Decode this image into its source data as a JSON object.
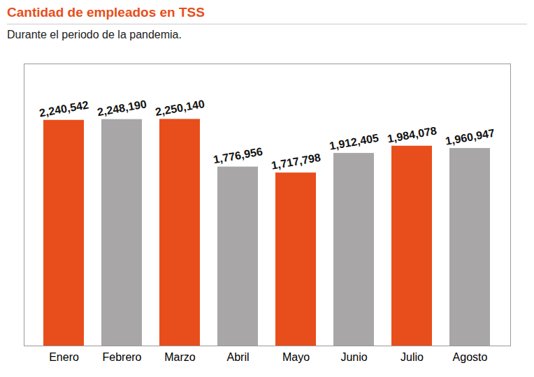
{
  "chart_data": {
    "type": "bar",
    "title": "Cantidad de empleados en TSS",
    "subtitle": "Durante el periodo de la pandemia.",
    "categories": [
      "Enero",
      "Febrero",
      "Marzo",
      "Abril",
      "Mayo",
      "Junio",
      "Julio",
      "Agosto"
    ],
    "values": [
      2240542,
      2248190,
      2250140,
      1776956,
      1717798,
      1912405,
      1984078,
      1960947
    ],
    "value_labels": [
      "2,240,542",
      "2,248,190",
      "2,250,140",
      "1,776,956",
      "1,717,798",
      "1,912,405",
      "1,984,078",
      "1,960,947"
    ],
    "colors": [
      "#e84e1b",
      "#a8a6a7",
      "#e84e1b",
      "#a8a6a7",
      "#e84e1b",
      "#a8a6a7",
      "#e84e1b",
      "#a8a6a7"
    ],
    "ylim": [
      0,
      2800000
    ],
    "data_labels": true,
    "tick_labels": "x",
    "grid": false
  }
}
